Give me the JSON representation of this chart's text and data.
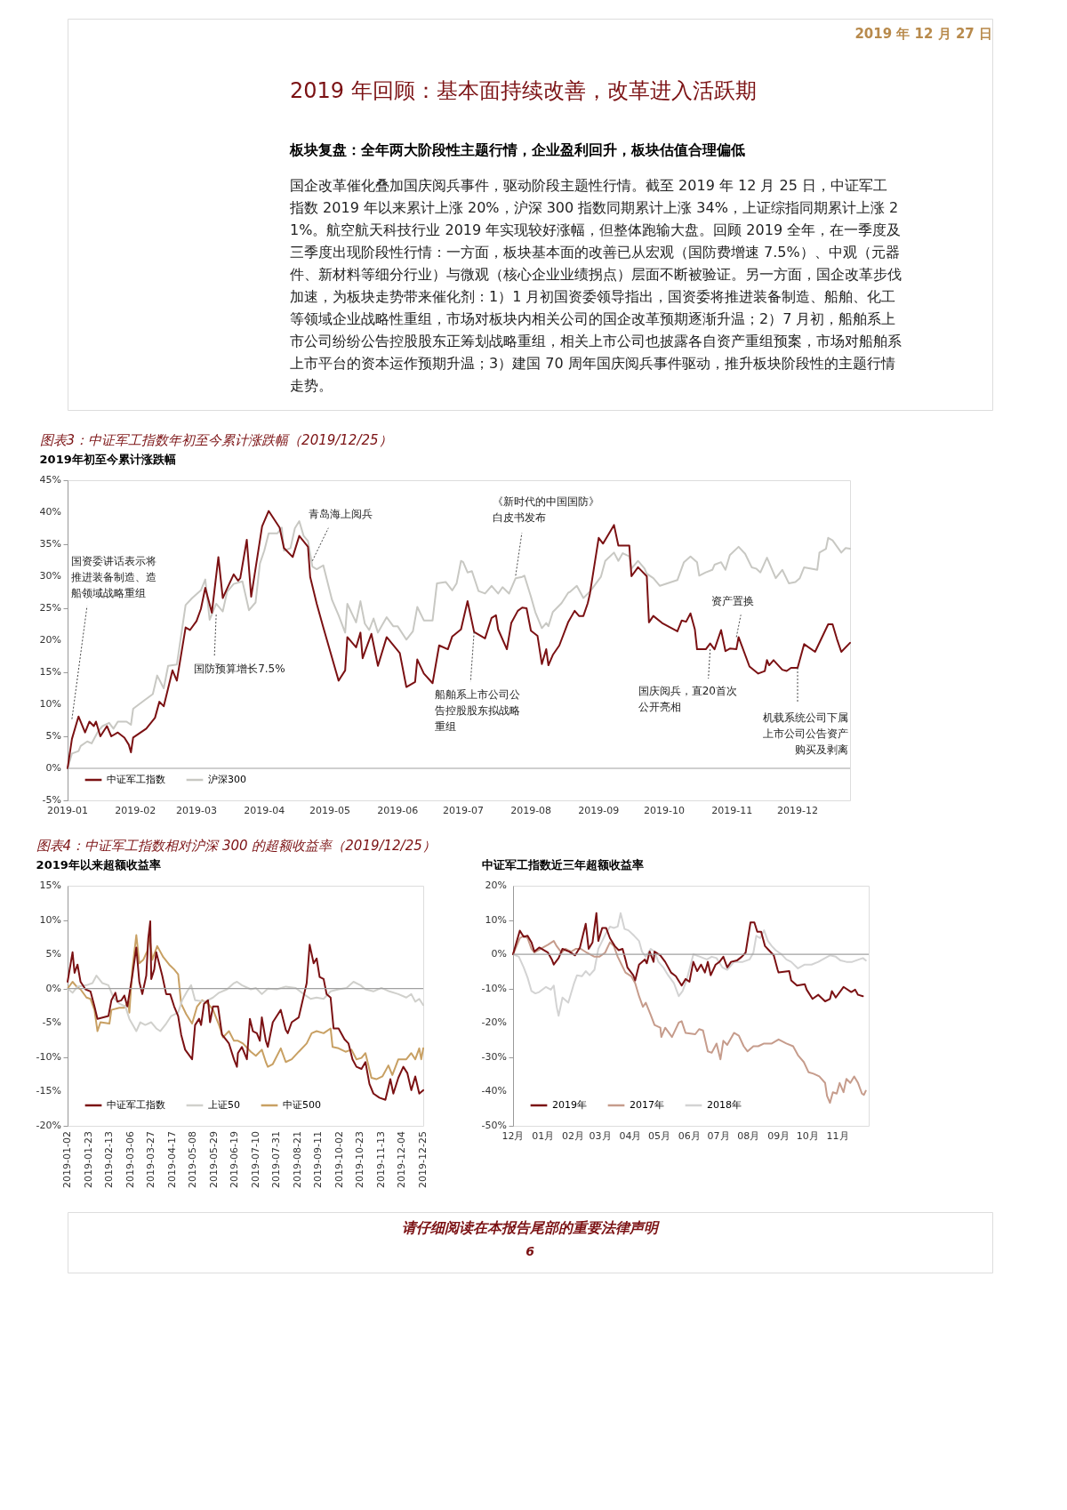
{
  "chart_data": [
    {
      "type": "other",
      "annotations": [
        "2019 年 12 月 27 日",
        "2019 年回顾：基本面持续改善，改革进入活跃期",
        "板块复盘：全年两大阶段性主题行情，企业盈利回升，板块估值合理偏低",
        "国企改革催化叠加国庆阅兵事件，驱动阶段主题性行情。截至 2019 年 12 月 25 日，中证军工指数 2019 年以来累计上涨 20%，沪深 300 指数同期累计上涨 34%，上证综指同期累计上涨 21%。航空航天科技行业 2019 年实现较好涨幅，但整体跑输大盘。回顾 2019 全年，在一季度及三季度出现阶段性行情：一方面，板块基本面的改善已从宏观（国防费增速 7.5%）、中观（元器件、新材料等细分行业）与微观（核心企业业绩拐点）层面不断被验证。另一方面，国企改革步伐加速，为板块走势带来催化剂：1）1 月初国资委领导指出，国资委将推进装备制造、船舶、化工等领域企业战略性重组，市场对板块内相关公司的国企改革预期逐渐升温；2）7 月初，船舶系上市公司纷纷公告控股股东正筹划战略重组，相关上市公司也披露各自资产重组预案，市场对船舶系上市平台的资本运作预期升温；3）建国 70 周年国庆阅兵事件驱动，推升板块阶段性的主题行情走势。"
      ]
    },
    {
      "type": "line",
      "title": "图表3：中证军工指数年初至今累计涨跌幅（2019/12/25）",
      "subtitle": "2019年初至今累计涨跌幅",
      "line_style": "solid",
      "legend": "bottom left",
      "xlim": [
        "2019-01-01",
        "2019-12-25"
      ],
      "xticks": [
        "2019-01",
        "2019-02",
        "2019-03",
        "2019-04",
        "2019-05",
        "2019-06",
        "2019-07",
        "2019-08",
        "2019-09",
        "2019-10",
        "2019-11",
        "2019-12"
      ],
      "ylim": [
        -5,
        45
      ],
      "yticks": [
        {
          "value": -5,
          "label": "-5%"
        },
        {
          "value": 0,
          "label": "0%"
        },
        {
          "value": 5,
          "label": "5%"
        },
        {
          "value": 10,
          "label": "10%"
        },
        {
          "value": 15,
          "label": "15%"
        },
        {
          "value": 20,
          "label": "20%"
        },
        {
          "value": 25,
          "label": "25%"
        },
        {
          "value": 30,
          "label": "30%"
        },
        {
          "value": 35,
          "label": "35%"
        },
        {
          "value": 40,
          "label": "40%"
        },
        {
          "value": 45,
          "label": "45%"
        }
      ],
      "ref_lines": [
        {
          "axis": "y",
          "value": 0,
          "color": "#a0a0a0"
        }
      ],
      "series": [
        {
          "name": "中证军工指数",
          "color": "#7b1113",
          "x": [
            "2019-01-01",
            "2019-01-03",
            "2019-01-06",
            "2019-01-09",
            "2019-01-11",
            "2019-01-13",
            "2019-01-14",
            "2019-01-16",
            "2019-01-19",
            "2019-01-21",
            "2019-01-24",
            "2019-01-27",
            "2019-01-29",
            "2019-01-30",
            "2019-01-31",
            "2019-02-06",
            "2019-02-10",
            "2019-02-12",
            "2019-02-14",
            "2019-02-18",
            "2019-02-20",
            "2019-02-24",
            "2019-02-26",
            "2019-03-01",
            "2019-03-03",
            "2019-03-05",
            "2019-03-08",
            "2019-03-11",
            "2019-03-13",
            "2019-03-18",
            "2019-03-20",
            "2019-03-21",
            "2019-03-24",
            "2019-03-26",
            "2019-03-31",
            "2019-04-03",
            "2019-04-08",
            "2019-04-10",
            "2019-04-14",
            "2019-04-17",
            "2019-04-21",
            "2019-04-22",
            "2019-04-25",
            "2019-04-28",
            "2019-05-05",
            "2019-05-08",
            "2019-05-09",
            "2019-05-13",
            "2019-05-15",
            "2019-05-16",
            "2019-05-20",
            "2019-05-23",
            "2019-05-27",
            "2019-06-02",
            "2019-06-05",
            "2019-06-09",
            "2019-06-10",
            "2019-06-13",
            "2019-06-17",
            "2019-06-20",
            "2019-06-24",
            "2019-06-26",
            "2019-06-30",
            "2019-07-03",
            "2019-07-06",
            "2019-07-11",
            "2019-07-14",
            "2019-07-16",
            "2019-07-17",
            "2019-07-21",
            "2019-07-23",
            "2019-07-26",
            "2019-07-28",
            "2019-07-30",
            "2019-08-01",
            "2019-08-04",
            "2019-08-06",
            "2019-08-08",
            "2019-08-09",
            "2019-08-11",
            "2019-08-14",
            "2019-08-18",
            "2019-08-21",
            "2019-08-23",
            "2019-08-25",
            "2019-08-27",
            "2019-08-28",
            "2019-09-01",
            "2019-09-03",
            "2019-09-08",
            "2019-09-10",
            "2019-09-15",
            "2019-09-16",
            "2019-09-19",
            "2019-09-23",
            "2019-09-24",
            "2019-09-26",
            "2019-09-30",
            "2019-10-07",
            "2019-10-09",
            "2019-10-11",
            "2019-10-13",
            "2019-10-15",
            "2019-10-16",
            "2019-10-20",
            "2019-10-22",
            "2019-10-24",
            "2019-10-27",
            "2019-10-29",
            "2019-10-31",
            "2019-11-03",
            "2019-11-04",
            "2019-11-09",
            "2019-11-13",
            "2019-11-16",
            "2019-11-17",
            "2019-11-18",
            "2019-11-20",
            "2019-11-24",
            "2019-11-26",
            "2019-11-28",
            "2019-12-01",
            "2019-12-04",
            "2019-12-09",
            "2019-12-15",
            "2019-12-17",
            "2019-12-19",
            "2019-12-21",
            "2019-12-25"
          ],
          "values": [
            0,
            4.6,
            8.1,
            5.6,
            7.3,
            6.6,
            7.3,
            5.0,
            6.6,
            5.0,
            5.6,
            4.8,
            3.7,
            2.5,
            4.8,
            6.2,
            7.9,
            10.4,
            9.7,
            15.3,
            13.7,
            22.0,
            21.6,
            23.0,
            24.9,
            28.2,
            24.3,
            33.0,
            26.6,
            30.3,
            29.3,
            29.7,
            35.7,
            26.8,
            37.8,
            40.2,
            37.6,
            34.4,
            33.0,
            36.3,
            34.6,
            29.9,
            25.7,
            22.0,
            13.7,
            15.3,
            20.5,
            18.9,
            21.2,
            17.2,
            21.0,
            16.0,
            20.5,
            18.0,
            12.7,
            13.5,
            17.0,
            14.8,
            13.3,
            19.2,
            18.6,
            20.6,
            21.7,
            26.1,
            21.3,
            20.3,
            23.5,
            23.9,
            21.7,
            18.6,
            22.7,
            24.6,
            25.1,
            25.0,
            21.5,
            20.7,
            16.3,
            18.6,
            16.1,
            17.7,
            19.2,
            22.8,
            24.6,
            23.8,
            23.8,
            25.8,
            27.3,
            36.0,
            35.1,
            38.0,
            34.8,
            34.8,
            30.0,
            31.4,
            30.0,
            22.8,
            23.8,
            22.7,
            21.4,
            23.1,
            22.9,
            24.2,
            21.7,
            18.6,
            18.6,
            19.5,
            18.6,
            21.6,
            18.3,
            18.7,
            18.6,
            20.5,
            15.9,
            14.8,
            15.2,
            16.9,
            16.1,
            16.9,
            15.4,
            15.2,
            15.7,
            15.7,
            19.4,
            18.2,
            22.5,
            22.5,
            20.2,
            18.2,
            19.6
          ]
        },
        {
          "name": "沪深300",
          "color": "#c8c8c3",
          "x": [
            "2019-01-01",
            "2019-01-03",
            "2019-01-06",
            "2019-01-07",
            "2019-01-10",
            "2019-01-12",
            "2019-01-15",
            "2019-01-17",
            "2019-01-20",
            "2019-01-22",
            "2019-01-24",
            "2019-01-28",
            "2019-01-30",
            "2019-01-31",
            "2019-02-05",
            "2019-02-09",
            "2019-02-11",
            "2019-02-14",
            "2019-02-16",
            "2019-02-20",
            "2019-02-24",
            "2019-02-27",
            "2019-03-03",
            "2019-03-05",
            "2019-03-07",
            "2019-03-10",
            "2019-03-13",
            "2019-03-15",
            "2019-03-18",
            "2019-03-22",
            "2019-03-25",
            "2019-03-28",
            "2019-03-30",
            "2019-04-01",
            "2019-04-03",
            "2019-04-07",
            "2019-04-09",
            "2019-04-10",
            "2019-04-13",
            "2019-04-15",
            "2019-04-17",
            "2019-04-19",
            "2019-04-21",
            "2019-04-23",
            "2019-04-25",
            "2019-04-28",
            "2019-05-02",
            "2019-05-05",
            "2019-05-08",
            "2019-05-09",
            "2019-05-13",
            "2019-05-15",
            "2019-05-17",
            "2019-05-19",
            "2019-05-21",
            "2019-05-23",
            "2019-05-27",
            "2019-05-30",
            "2019-06-01",
            "2019-06-05",
            "2019-06-08",
            "2019-06-10",
            "2019-06-13",
            "2019-06-17",
            "2019-06-19",
            "2019-06-23",
            "2019-06-26",
            "2019-06-28",
            "2019-06-30",
            "2019-07-01",
            "2019-07-03",
            "2019-07-05",
            "2019-07-08",
            "2019-07-11",
            "2019-07-14",
            "2019-07-17",
            "2019-07-19",
            "2019-07-22",
            "2019-07-25",
            "2019-07-28",
            "2019-07-29",
            "2019-08-01",
            "2019-08-03",
            "2019-08-06",
            "2019-08-08",
            "2019-08-09",
            "2019-08-11",
            "2019-08-15",
            "2019-08-18",
            "2019-08-19",
            "2019-08-22",
            "2019-08-25",
            "2019-08-28",
            "2019-09-02",
            "2019-09-04",
            "2019-09-08",
            "2019-09-10",
            "2019-09-12",
            "2019-09-15",
            "2019-09-16",
            "2019-09-19",
            "2019-09-22",
            "2019-09-23",
            "2019-09-26",
            "2019-09-29",
            "2019-10-07",
            "2019-10-10",
            "2019-10-13",
            "2019-10-16",
            "2019-10-17",
            "2019-10-20",
            "2019-10-23",
            "2019-10-24",
            "2019-10-27",
            "2019-10-29",
            "2019-10-31",
            "2019-11-04",
            "2019-11-07",
            "2019-11-10",
            "2019-11-12",
            "2019-11-14",
            "2019-11-17",
            "2019-11-21",
            "2019-11-24",
            "2019-11-27",
            "2019-11-30",
            "2019-12-02",
            "2019-12-04",
            "2019-12-10",
            "2019-12-11",
            "2019-12-14",
            "2019-12-15",
            "2019-12-17",
            "2019-12-21",
            "2019-12-23",
            "2019-12-25"
          ],
          "values": [
            0,
            2.3,
            2.7,
            3.5,
            4.2,
            3.9,
            5.8,
            6.6,
            7.1,
            6.2,
            7.3,
            7.3,
            6.8,
            9.3,
            10.6,
            11.6,
            14.5,
            12.5,
            16.0,
            16.2,
            25.5,
            26.6,
            27.8,
            29.5,
            23.2,
            25.7,
            24.5,
            27.6,
            28.8,
            29.2,
            24.7,
            25.9,
            32.0,
            34.0,
            36.7,
            36.7,
            37.6,
            34.0,
            34.4,
            37.5,
            38.6,
            36.3,
            35.5,
            31.5,
            31.1,
            31.7,
            26.3,
            23.9,
            21.2,
            25.7,
            22.8,
            26.1,
            22.6,
            21.6,
            23.4,
            21.2,
            23.6,
            22.2,
            22.2,
            20.1,
            21.4,
            25.2,
            23.1,
            23.1,
            28.9,
            29.1,
            27.8,
            28.9,
            32.4,
            32.2,
            30.6,
            30.8,
            27.7,
            27.3,
            28.5,
            27.3,
            28.3,
            27.3,
            29.7,
            29.9,
            30.1,
            26.8,
            24.4,
            21.9,
            22.7,
            22.2,
            24.4,
            25.8,
            27.4,
            27.6,
            28.5,
            26.6,
            27.6,
            29.9,
            32.4,
            33.7,
            32.4,
            33.6,
            33.1,
            31.2,
            32.4,
            31.2,
            30.4,
            29.7,
            28.5,
            29.4,
            32.2,
            33.1,
            32.2,
            30.1,
            30.6,
            31.0,
            31.8,
            32.2,
            31.0,
            33.3,
            34.6,
            33.5,
            31.4,
            31.2,
            30.6,
            32.9,
            29.7,
            31.0,
            28.9,
            29.1,
            29.7,
            31.4,
            31.0,
            33.7,
            34.3,
            36.0,
            35.6,
            33.7,
            34.4,
            34.3
          ]
        }
      ],
      "annotations": [
        {
          "text": "国资委讲话表示将推进装备制造、造船领域战略重组",
          "x": "2019-01-03",
          "y": 7.7
        },
        {
          "text": "国防预算增长7.5%",
          "x": "2019-03-10",
          "y": 24
        },
        {
          "text": "青岛海上阅兵",
          "x": "2019-04-23",
          "y": 32.4
        },
        {
          "text": "《新时代的中国国防》白皮书发布",
          "x": "2019-07-25",
          "y": 30.1
        },
        {
          "text": "船舶系上市公司公告控股股东拟战略重组",
          "x": "2019-07-06",
          "y": 21.3
        },
        {
          "text": "国庆阅兵，直20首次公开亮相",
          "x": "2019-10-22",
          "y": 18.6
        },
        {
          "text": "资产置换",
          "x": "2019-11-03",
          "y": 20.5
        },
        {
          "text": "机载系统公司下属上市公司公告资产购买及剥离",
          "x": "2019-12-01",
          "y": 15.7
        }
      ]
    },
    {
      "type": "line",
      "title": "图表4：中证军工指数相对沪深 300 的超额收益率（2019/12/25）",
      "subtitle": "2019年以来超额收益率",
      "line_style": "solid",
      "legend": "bottom left",
      "xlim": [
        "2019-01-02",
        "2019-12-25"
      ],
      "xticks": [
        "2019-01-02",
        "2019-01-23",
        "2019-02-13",
        "2019-03-06",
        "2019-03-27",
        "2019-04-17",
        "2019-05-08",
        "2019-05-29",
        "2019-06-19",
        "2019-07-10",
        "2019-07-31",
        "2019-08-21",
        "2019-09-11",
        "2019-10-02",
        "2019-10-23",
        "2019-11-13",
        "2019-12-04",
        "2019-12-25"
      ],
      "ylim": [
        -20,
        15
      ],
      "yticks": [
        {
          "value": -20,
          "label": "-20%"
        },
        {
          "value": -15,
          "label": "-15%"
        },
        {
          "value": -10,
          "label": "-10%"
        },
        {
          "value": -5,
          "label": "-5%"
        },
        {
          "value": 0,
          "label": "0%"
        },
        {
          "value": 5,
          "label": "5%"
        },
        {
          "value": 10,
          "label": "10%"
        },
        {
          "value": 15,
          "label": "15%"
        }
      ],
      "ref_lines": [
        {
          "axis": "y",
          "value": 0,
          "color": "#a0a0a0"
        }
      ],
      "series": [
        {
          "name": "中证军工指数",
          "color": "#7b1113",
          "x": [
            "2019-01-02",
            "2019-01-07",
            "2019-01-09",
            "2019-01-12",
            "2019-01-15",
            "2019-01-20",
            "2019-01-25",
            "2019-01-29",
            "2019-02-01",
            "2019-02-12",
            "2019-02-15",
            "2019-02-19",
            "2019-02-21",
            "2019-02-25",
            "2019-02-28",
            "2019-03-03",
            "2019-03-08",
            "2019-03-12",
            "2019-03-15",
            "2019-03-18",
            "2019-03-22",
            "2019-03-24",
            "2019-03-26",
            "2019-03-27",
            "2019-03-30",
            "2019-04-01",
            "2019-04-07",
            "2019-04-11",
            "2019-04-15",
            "2019-04-19",
            "2019-04-23",
            "2019-04-26",
            "2019-04-30",
            "2019-05-07",
            "2019-05-10",
            "2019-05-14",
            "2019-05-16",
            "2019-05-19",
            "2019-05-23",
            "2019-05-25",
            "2019-05-28",
            "2019-06-02",
            "2019-06-06",
            "2019-06-13",
            "2019-06-18",
            "2019-06-21",
            "2019-06-22",
            "2019-06-26",
            "2019-07-01",
            "2019-07-04",
            "2019-07-07",
            "2019-07-11",
            "2019-07-14",
            "2019-07-16",
            "2019-07-20",
            "2019-07-22",
            "2019-07-27",
            "2019-07-31",
            "2019-08-04",
            "2019-08-09",
            "2019-08-11",
            "2019-08-15",
            "2019-08-22",
            "2019-08-26",
            "2019-08-30",
            "2019-09-02",
            "2019-09-06",
            "2019-09-09",
            "2019-09-12",
            "2019-09-16",
            "2019-09-19",
            "2019-09-23",
            "2019-09-26",
            "2019-10-01",
            "2019-10-07",
            "2019-10-11",
            "2019-10-15",
            "2019-10-19",
            "2019-10-24",
            "2019-10-28",
            "2019-11-01",
            "2019-11-05",
            "2019-11-11",
            "2019-11-17",
            "2019-11-22",
            "2019-11-25",
            "2019-11-30",
            "2019-12-05",
            "2019-12-09",
            "2019-12-13",
            "2019-12-17",
            "2019-12-21",
            "2019-12-25"
          ],
          "values": [
            1.0,
            5.3,
            2.3,
            3.5,
            1.0,
            -0.1,
            -0.4,
            -2.6,
            -4.4,
            -4.0,
            -1.7,
            -0.6,
            -1.9,
            -1.7,
            -1.0,
            -2.6,
            1.9,
            6.0,
            1.0,
            -0.8,
            1.9,
            7.3,
            9.8,
            1.4,
            2.8,
            5.3,
            1.9,
            -0.8,
            -0.8,
            -2.6,
            -4.0,
            -6.7,
            -8.9,
            -10.3,
            -5.3,
            -4.4,
            -5.3,
            -2.2,
            -1.7,
            -4.9,
            -2.6,
            -2.6,
            -6.7,
            -8.0,
            -10.3,
            -11.4,
            -9.4,
            -8.5,
            -10.3,
            -4.4,
            -6.2,
            -6.5,
            -7.6,
            -4.2,
            -7.6,
            -8.5,
            -4.9,
            -4.0,
            -3.1,
            -6.0,
            -6.5,
            -4.9,
            -4.2,
            -1.7,
            0.8,
            6.4,
            3.7,
            4.4,
            1.7,
            1.4,
            -0.8,
            -1.3,
            -5.8,
            -5.8,
            -7.4,
            -8.0,
            -10.3,
            -11.4,
            -11.7,
            -10.7,
            -13.9,
            -15.3,
            -15.9,
            -16.2,
            -13.2,
            -15.3,
            -13.0,
            -11.4,
            -12.3,
            -14.8,
            -12.8,
            -15.3,
            -14.8
          ]
        },
        {
          "name": "上证50",
          "color": "#d0d0cc",
          "x": [
            "2019-01-02",
            "2019-01-07",
            "2019-01-12",
            "2019-01-21",
            "2019-01-27",
            "2019-01-31",
            "2019-02-06",
            "2019-02-12",
            "2019-02-17",
            "2019-02-23",
            "2019-03-01",
            "2019-03-05",
            "2019-03-12",
            "2019-03-16",
            "2019-03-21",
            "2019-03-27",
            "2019-04-01",
            "2019-04-05",
            "2019-04-11",
            "2019-04-16",
            "2019-04-23",
            "2019-04-27",
            "2019-05-02",
            "2019-05-06",
            "2019-05-10",
            "2019-05-20",
            "2019-05-28",
            "2019-06-03",
            "2019-06-11",
            "2019-06-18",
            "2019-06-21",
            "2019-06-26",
            "2019-07-05",
            "2019-07-10",
            "2019-07-16",
            "2019-07-22",
            "2019-07-31",
            "2019-08-09",
            "2019-08-19",
            "2019-08-27",
            "2019-09-03",
            "2019-09-09",
            "2019-09-16",
            "2019-09-23",
            "2019-10-01",
            "2019-10-09",
            "2019-10-16",
            "2019-10-23",
            "2019-10-28",
            "2019-11-05",
            "2019-11-13",
            "2019-11-21",
            "2019-11-30",
            "2019-12-08",
            "2019-12-13",
            "2019-12-17",
            "2019-12-21",
            "2019-12-25"
          ],
          "values": [
            0,
            -0.6,
            0.3,
            0.5,
            0.8,
            1.9,
            0.8,
            0.5,
            -1.3,
            -2.2,
            -2.6,
            -4.4,
            -6.2,
            -4.9,
            -5.3,
            -4.9,
            -5.8,
            -6.2,
            -5.1,
            -4.0,
            -3.5,
            -1.7,
            -0.4,
            0.5,
            -1.7,
            -1.9,
            -1.3,
            -0.6,
            -0.1,
            0.8,
            1.0,
            0.5,
            -0.1,
            0.1,
            -0.8,
            0,
            -0.1,
            0.3,
            0.1,
            -0.8,
            -1.5,
            -1.3,
            -1.5,
            -0.4,
            -0.1,
            0.1,
            1.0,
            0.5,
            -0.1,
            -0.4,
            0.1,
            -0.4,
            -0.8,
            -1.3,
            -0.8,
            -1.9,
            -1.5,
            -2.4
          ]
        },
        {
          "name": "中证500",
          "color": "#c8a063",
          "x": [
            "2019-01-02",
            "2019-01-07",
            "2019-01-11",
            "2019-01-15",
            "2019-01-21",
            "2019-01-25",
            "2019-01-29",
            "2019-02-01",
            "2019-02-04",
            "2019-02-13",
            "2019-02-15",
            "2019-02-23",
            "2019-02-28",
            "2019-03-04",
            "2019-03-05",
            "2019-03-08",
            "2019-03-12",
            "2019-03-15",
            "2019-03-19",
            "2019-03-23",
            "2019-03-25",
            "2019-03-28",
            "2019-04-02",
            "2019-04-08",
            "2019-04-14",
            "2019-04-19",
            "2019-04-23",
            "2019-04-26",
            "2019-05-01",
            "2019-05-07",
            "2019-05-12",
            "2019-05-17",
            "2019-05-23",
            "2019-05-28",
            "2019-06-03",
            "2019-06-07",
            "2019-06-13",
            "2019-06-18",
            "2019-06-22",
            "2019-06-27",
            "2019-07-05",
            "2019-07-10",
            "2019-07-16",
            "2019-07-20",
            "2019-07-22",
            "2019-07-27",
            "2019-08-04",
            "2019-08-09",
            "2019-08-15",
            "2019-08-22",
            "2019-08-30",
            "2019-09-04",
            "2019-09-09",
            "2019-09-16",
            "2019-09-23",
            "2019-09-25",
            "2019-10-01",
            "2019-10-08",
            "2019-10-14",
            "2019-10-19",
            "2019-10-24",
            "2019-10-28",
            "2019-11-03",
            "2019-11-08",
            "2019-11-14",
            "2019-11-20",
            "2019-11-24",
            "2019-11-30",
            "2019-12-08",
            "2019-12-13",
            "2019-12-17",
            "2019-12-21",
            "2019-12-23",
            "2019-12-25"
          ],
          "values": [
            0,
            1.0,
            0.3,
            -0.1,
            -1.3,
            -1.5,
            -3.1,
            -6.2,
            -4.9,
            -5.1,
            -3.1,
            -2.8,
            -2.8,
            -1.9,
            -3.5,
            2.8,
            7.8,
            3.7,
            4.2,
            5.5,
            8.0,
            4.2,
            6.2,
            4.6,
            3.5,
            2.8,
            2.1,
            -2.2,
            -3.7,
            -5.1,
            -2.6,
            -1.7,
            -2.2,
            -3.1,
            -5.3,
            -7.1,
            -6.2,
            -7.6,
            -7.6,
            -8.0,
            -9.2,
            -9.8,
            -8.9,
            -10.7,
            -11.4,
            -11.0,
            -8.7,
            -10.7,
            -10.3,
            -9.2,
            -8.0,
            -6.5,
            -6.2,
            -6.5,
            -5.8,
            -8.5,
            -8.7,
            -9.2,
            -8.9,
            -10.3,
            -10.1,
            -9.4,
            -13.0,
            -13.2,
            -12.8,
            -11.2,
            -12.6,
            -10.3,
            -10.3,
            -9.4,
            -10.3,
            -8.7,
            -10.3,
            -8.7
          ]
        }
      ]
    },
    {
      "type": "line",
      "subtitle": "中证军工指数近三年超额收益率",
      "line_style": "solid",
      "legend": "bottom left",
      "xlim": [
        "2018-12-01",
        "2019-12-03"
      ],
      "xticks": [
        {
          "value": "2018-12-01",
          "label": "12月"
        },
        {
          "value": "2019-01-01",
          "label": "01月"
        },
        {
          "value": "2019-02-01",
          "label": "02月"
        },
        {
          "value": "2019-03-01",
          "label": "03月"
        },
        {
          "value": "2019-04-01",
          "label": "04月"
        },
        {
          "value": "2019-05-01",
          "label": "05月"
        },
        {
          "value": "2019-06-01",
          "label": "06月"
        },
        {
          "value": "2019-07-01",
          "label": "07月"
        },
        {
          "value": "2019-08-01",
          "label": "08月"
        },
        {
          "value": "2019-09-01",
          "label": "09月"
        },
        {
          "value": "2019-10-01",
          "label": "10月"
        },
        {
          "value": "2019-11-01",
          "label": "11月"
        }
      ],
      "ylim": [
        -50,
        20
      ],
      "yticks": [
        {
          "value": -50,
          "label": "-50%"
        },
        {
          "value": -40,
          "label": "-40%"
        },
        {
          "value": -30,
          "label": "-30%"
        },
        {
          "value": -20,
          "label": "-20%"
        },
        {
          "value": -10,
          "label": "-10%"
        },
        {
          "value": 0,
          "label": "0%"
        },
        {
          "value": 10,
          "label": "10%"
        },
        {
          "value": 20,
          "label": "20%"
        }
      ],
      "ref_lines": [
        {
          "axis": "y",
          "value": 0,
          "color": "#a0a0a0"
        }
      ],
      "series": [
        {
          "name": "2019年",
          "color": "#7b1113",
          "x": [
            "2018-12-01",
            "2018-12-08",
            "2018-12-12",
            "2018-12-16",
            "2018-12-20",
            "2018-12-23",
            "2018-12-28",
            "2019-01-06",
            "2019-01-10",
            "2019-01-12",
            "2019-01-17",
            "2019-01-21",
            "2019-01-28",
            "2019-02-03",
            "2019-02-08",
            "2019-02-14",
            "2019-02-17",
            "2019-02-21",
            "2019-02-25",
            "2019-02-27",
            "2019-03-03",
            "2019-03-07",
            "2019-03-11",
            "2019-03-16",
            "2019-03-20",
            "2019-03-24",
            "2019-03-27",
            "2019-03-29",
            "2019-04-04",
            "2019-04-06",
            "2019-04-10",
            "2019-04-16",
            "2019-04-18",
            "2019-04-21",
            "2019-04-25",
            "2019-04-26",
            "2019-05-02",
            "2019-05-07",
            "2019-05-13",
            "2019-05-18",
            "2019-05-24",
            "2019-05-28",
            "2019-06-01",
            "2019-06-05",
            "2019-06-09",
            "2019-06-13",
            "2019-06-17",
            "2019-06-20",
            "2019-06-23",
            "2019-06-28",
            "2019-07-02",
            "2019-07-06",
            "2019-07-10",
            "2019-07-14",
            "2019-07-20",
            "2019-07-25",
            "2019-07-29",
            "2019-08-03",
            "2019-08-07",
            "2019-08-10",
            "2019-08-14",
            "2019-08-18",
            "2019-08-22",
            "2019-08-27",
            "2019-08-31",
            "2019-09-01",
            "2019-09-12",
            "2019-09-14",
            "2019-09-20",
            "2019-09-28",
            "2019-09-30",
            "2019-10-06",
            "2019-10-12",
            "2019-10-19",
            "2019-10-24",
            "2019-10-26",
            "2019-10-30",
            "2019-11-07",
            "2019-11-15",
            "2019-11-19",
            "2019-11-22",
            "2019-11-27"
          ],
          "values": [
            0,
            6.9,
            5.1,
            5.4,
            3.5,
            0.8,
            2.0,
            0.5,
            -1.5,
            -3.0,
            -1.1,
            1.6,
            0.8,
            -0.3,
            2.0,
            8.9,
            1.6,
            3.5,
            12.0,
            3.9,
            7.7,
            7.7,
            4.7,
            2.4,
            1.2,
            1.6,
            -1.5,
            -3.8,
            -6.1,
            -7.6,
            -3.0,
            -1.5,
            -2.6,
            0.8,
            -2.2,
            0.8,
            -0.3,
            -2.2,
            -5.3,
            -6.4,
            -9.1,
            -7.2,
            -8.0,
            -2.2,
            -4.9,
            -3.0,
            -5.3,
            -2.2,
            -6.1,
            -3.0,
            -2.2,
            -0.7,
            -3.8,
            -2.2,
            -1.8,
            -0.7,
            0.5,
            9.3,
            9.3,
            6.6,
            6.6,
            2.4,
            1.2,
            -0.3,
            -4.5,
            -5.3,
            -4.9,
            -7.6,
            -9.1,
            -8.7,
            -10.3,
            -13.0,
            -11.8,
            -13.7,
            -13.0,
            -10.7,
            -12.6,
            -9.5,
            -11.0,
            -10.3,
            -11.8,
            -12.2
          ]
        },
        {
          "name": "2017年",
          "color": "#c69c8c",
          "x": [
            "2018-12-01",
            "2018-12-08",
            "2018-12-12",
            "2018-12-16",
            "2018-12-20",
            "2018-12-23",
            "2018-12-27",
            "2019-01-01",
            "2019-01-06",
            "2019-01-12",
            "2019-01-15",
            "2019-01-20",
            "2019-01-24",
            "2019-01-30",
            "2019-02-04",
            "2019-02-09",
            "2019-02-15",
            "2019-02-23",
            "2019-02-28",
            "2019-03-06",
            "2019-03-11",
            "2019-03-15",
            "2019-03-19",
            "2019-03-23",
            "2019-03-27",
            "2019-04-02",
            "2019-04-06",
            "2019-04-10",
            "2019-04-14",
            "2019-04-17",
            "2019-04-22",
            "2019-04-26",
            "2019-05-02",
            "2019-05-03",
            "2019-05-07",
            "2019-05-14",
            "2019-05-21",
            "2019-05-24",
            "2019-05-28",
            "2019-06-07",
            "2019-06-11",
            "2019-06-15",
            "2019-06-20",
            "2019-06-24",
            "2019-06-29",
            "2019-07-03",
            "2019-07-06",
            "2019-07-10",
            "2019-07-17",
            "2019-07-22",
            "2019-07-27",
            "2019-07-31",
            "2019-08-06",
            "2019-08-11",
            "2019-08-17",
            "2019-08-25",
            "2019-09-01",
            "2019-09-09",
            "2019-09-16",
            "2019-09-21",
            "2019-09-27",
            "2019-10-02",
            "2019-10-07",
            "2019-10-13",
            "2019-10-19",
            "2019-10-21",
            "2019-10-24",
            "2019-10-27",
            "2019-10-31",
            "2019-11-03",
            "2019-11-07",
            "2019-11-10",
            "2019-11-14",
            "2019-11-18",
            "2019-11-22",
            "2019-11-26",
            "2019-11-28",
            "2019-11-30"
          ],
          "values": [
            0,
            4.7,
            5.4,
            4.7,
            1.6,
            0.5,
            1.2,
            2.0,
            2.8,
            3.9,
            2.4,
            0.5,
            1.6,
            0.8,
            1.6,
            1.6,
            0.5,
            -0.7,
            -0.7,
            0.5,
            3.5,
            2.4,
            -0.7,
            -3.0,
            -5.3,
            -6.4,
            -8.4,
            -12.2,
            -15.3,
            -14.1,
            -17.6,
            -20.6,
            -21.4,
            -24.1,
            -21.4,
            -24.1,
            -19.9,
            -19.5,
            -22.9,
            -23.3,
            -21.8,
            -22.2,
            -28.3,
            -28.7,
            -26.0,
            -30.6,
            -25.2,
            -26.4,
            -22.9,
            -23.7,
            -26.8,
            -28.3,
            -26.8,
            -26.8,
            -26.0,
            -26.0,
            -24.8,
            -26.0,
            -26.8,
            -29.4,
            -31.4,
            -34.4,
            -34.8,
            -35.6,
            -37.5,
            -41.3,
            -43.3,
            -40.2,
            -40.6,
            -37.5,
            -40.2,
            -36.3,
            -37.5,
            -35.6,
            -37.5,
            -40.6,
            -41.0,
            -39.8
          ]
        },
        {
          "name": "2018年",
          "color": "#d3d3d3",
          "x": [
            "2018-12-01",
            "2018-12-07",
            "2018-12-12",
            "2018-12-16",
            "2018-12-20",
            "2018-12-24",
            "2018-12-28",
            "2019-01-04",
            "2019-01-09",
            "2019-01-12",
            "2019-01-15",
            "2019-01-17",
            "2019-01-21",
            "2019-01-27",
            "2019-02-02",
            "2019-02-05",
            "2019-02-10",
            "2019-02-14",
            "2019-02-18",
            "2019-02-23",
            "2019-02-27",
            "2019-03-03",
            "2019-03-07",
            "2019-03-11",
            "2019-03-15",
            "2019-03-19",
            "2019-03-22",
            "2019-03-26",
            "2019-03-30",
            "2019-04-05",
            "2019-04-10",
            "2019-04-13",
            "2019-04-17",
            "2019-04-22",
            "2019-04-26",
            "2019-04-30",
            "2019-05-05",
            "2019-05-10",
            "2019-05-16",
            "2019-05-21",
            "2019-05-25",
            "2019-05-29",
            "2019-06-03",
            "2019-06-05",
            "2019-06-12",
            "2019-06-19",
            "2019-06-24",
            "2019-06-29",
            "2019-07-05",
            "2019-07-10",
            "2019-07-17",
            "2019-07-26",
            "2019-08-02",
            "2019-08-06",
            "2019-08-09",
            "2019-08-13",
            "2019-08-17",
            "2019-08-21",
            "2019-08-25",
            "2019-08-29",
            "2019-09-04",
            "2019-09-09",
            "2019-09-14",
            "2019-09-21",
            "2019-09-28",
            "2019-10-05",
            "2019-10-12",
            "2019-10-19",
            "2019-10-24",
            "2019-10-30",
            "2019-11-04",
            "2019-11-10",
            "2019-11-16",
            "2019-11-23",
            "2019-11-27",
            "2019-11-30"
          ],
          "values": [
            0,
            -0.7,
            -3.8,
            -6.8,
            -10.7,
            -11.4,
            -11.0,
            -9.5,
            -10.3,
            -9.1,
            -15.3,
            -17.9,
            -12.6,
            -14.1,
            -8.4,
            -6.1,
            -6.4,
            -4.9,
            -6.1,
            -4.5,
            1.6,
            3.9,
            6.2,
            8.1,
            7.7,
            8.1,
            12.0,
            7.4,
            7.0,
            5.4,
            3.9,
            0.8,
            -0.7,
            1.6,
            0.8,
            -2.2,
            -3.8,
            -6.1,
            -8.4,
            -12.2,
            -10.7,
            -7.6,
            -2.2,
            0,
            -0.7,
            -1.5,
            -0.7,
            -1.1,
            -3.8,
            -4.5,
            -2.2,
            -2.2,
            -1.5,
            0.5,
            5.4,
            4.7,
            7.0,
            3.9,
            2.4,
            1.2,
            0,
            -1.5,
            -2.2,
            -4.1,
            -3.0,
            -3.0,
            -2.2,
            -1.1,
            -0.3,
            -0.7,
            -1.8,
            -2.2,
            -2.2,
            -1.5,
            -1.1,
            -1.8
          ]
        }
      ]
    },
    {
      "type": "other",
      "annotations": [
        "请仔细阅读在本报告尾部的重要法律声明",
        "6"
      ]
    }
  ]
}
